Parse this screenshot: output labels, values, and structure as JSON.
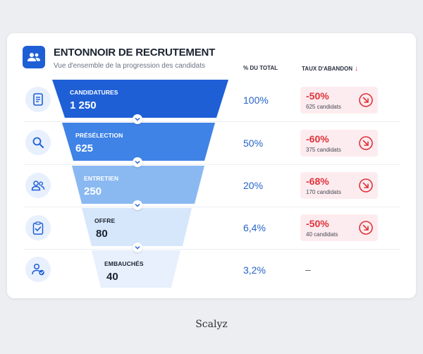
{
  "header": {
    "title": "ENTONNOIR DE RECRUTEMENT",
    "subtitle": "Vue d'ensemble de la progression des candidats",
    "icon": "users-icon",
    "accent": "#1e5fd6"
  },
  "columns": {
    "total_label": "% DU TOTAL",
    "abandon_label": "TAUX D'ABANDON",
    "abandon_arrow": "↓"
  },
  "stages": [
    {
      "label": "CANDIDATURES",
      "value": "1 250",
      "pct": "100%",
      "drop_rate": "-50%",
      "drop_count": "625 candidats",
      "icon": "document-icon",
      "color": "#1e5fd6"
    },
    {
      "label": "PRÉSÉLECTION",
      "value": "625",
      "pct": "50%",
      "drop_rate": "-60%",
      "drop_count": "375 candidats",
      "icon": "search-icon",
      "color": "#3f83e6"
    },
    {
      "label": "ENTRETIEN",
      "value": "250",
      "pct": "20%",
      "drop_rate": "-68%",
      "drop_count": "170 candidats",
      "icon": "people-icon",
      "color": "#8ab9f2"
    },
    {
      "label": "OFFRE",
      "value": "80",
      "pct": "6,4%",
      "drop_rate": "-50%",
      "drop_count": "40 candidats",
      "icon": "clipboard-check-icon",
      "color": "#d6e6fb"
    },
    {
      "label": "EMBAUCHÉS",
      "value": "40",
      "pct": "3,2%",
      "drop_rate": "–",
      "drop_count": "",
      "icon": "user-check-icon",
      "color": "#e7f0fc"
    }
  ],
  "drop_icon": "arrow-down-right-circle-icon",
  "drop_color": "#e0333b",
  "brand": "Scalyz"
}
